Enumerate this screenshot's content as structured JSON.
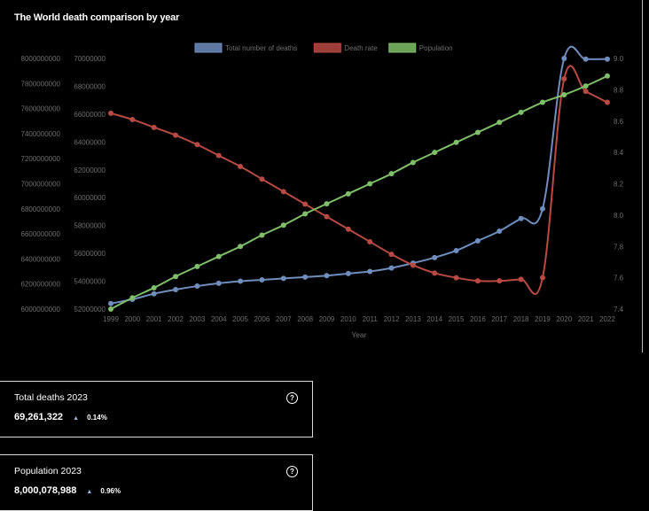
{
  "chart_title": "The World death comparison by year",
  "chart_data": {
    "type": "line",
    "title": "The World death comparison by year",
    "xlabel": "Year",
    "ylabel": "",
    "categories": [
      "1999",
      "2000",
      "2001",
      "2002",
      "2003",
      "2004",
      "2005",
      "2006",
      "2007",
      "2008",
      "2009",
      "2010",
      "2011",
      "2012",
      "2013",
      "2014",
      "2015",
      "2016",
      "2017",
      "2018",
      "2019",
      "2020",
      "2021",
      "2022"
    ],
    "axes": {
      "y_population": {
        "min": 6000000000,
        "max": 8000000000,
        "ticks": [
          "8000000000",
          "7800000000",
          "7600000000",
          "7400000000",
          "7200000000",
          "7000000000",
          "6800000000",
          "6600000000",
          "6400000000",
          "6200000000",
          "6000000000"
        ]
      },
      "y_deaths": {
        "min": 52000000,
        "max": 70000000,
        "ticks": [
          "70000000",
          "68000000",
          "66000000",
          "64000000",
          "62000000",
          "60000000",
          "58000000",
          "56000000",
          "54000000",
          "52000000"
        ]
      },
      "y_rate": {
        "min": 7.4,
        "max": 9.0,
        "ticks": [
          "9.0",
          "8.8",
          "8.6",
          "8.4",
          "8.2",
          "8.0",
          "7.8",
          "7.6",
          "7.4"
        ]
      }
    },
    "series": [
      {
        "name": "Total number of deaths",
        "axis": "y_deaths",
        "color": "#6f8ebd",
        "values": [
          52400000,
          52700000,
          53100000,
          53400000,
          53650000,
          53850000,
          54000000,
          54100000,
          54200000,
          54300000,
          54400000,
          54550000,
          54700000,
          54950000,
          55300000,
          55700000,
          56200000,
          56900000,
          57600000,
          58500000,
          59200000,
          70000000,
          69950000,
          69950000
        ]
      },
      {
        "name": "Death rate",
        "axis": "y_rate",
        "color": "#b84a43",
        "values": [
          8.65,
          8.61,
          8.56,
          8.51,
          8.45,
          8.38,
          8.31,
          8.23,
          8.15,
          8.07,
          7.99,
          7.91,
          7.83,
          7.75,
          7.68,
          7.63,
          7.6,
          7.58,
          7.58,
          7.59,
          7.6,
          8.87,
          8.79,
          8.72
        ]
      },
      {
        "name": "Population",
        "axis": "y_population",
        "color": "#7fbf69",
        "values": [
          6000000000,
          6090000000,
          6170000000,
          6260000000,
          6340000000,
          6420000000,
          6500000000,
          6590000000,
          6670000000,
          6760000000,
          6840000000,
          6920000000,
          7000000000,
          7080000000,
          7170000000,
          7250000000,
          7330000000,
          7410000000,
          7490000000,
          7570000000,
          7650000000,
          7710000000,
          7780000000,
          7860000000
        ]
      }
    ],
    "legend_position": "top-center",
    "grid": false
  },
  "cards": [
    {
      "title": "Total deaths 2023",
      "value": "69,261,322",
      "change": "0.14%",
      "trend_icon": "up-triangle-icon",
      "help_icon": "question-circle-icon"
    },
    {
      "title": "Population 2023",
      "value": "8,000,078,988",
      "change": "0.96%",
      "trend_icon": "up-triangle-icon",
      "help_icon": "question-circle-icon"
    }
  ]
}
